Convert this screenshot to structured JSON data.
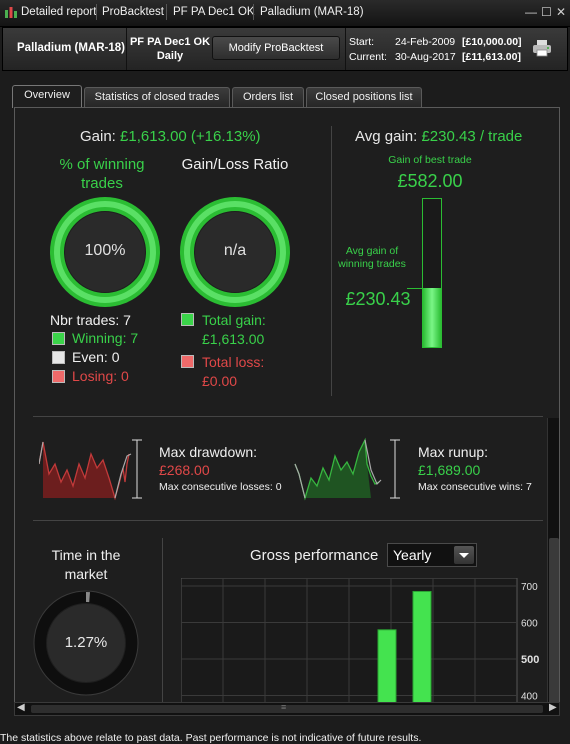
{
  "titlebar": {
    "crumbs": [
      "Detailed report",
      "ProBacktest",
      "PF PA Dec1 OK",
      "Palladium (MAR-18)"
    ],
    "buttons": [
      "—",
      "☐",
      "✕"
    ]
  },
  "header": {
    "instrument": "Palladium (MAR-18)",
    "strategy_line1": "PF PA Dec1 OK",
    "strategy_line2": "Daily",
    "modify_button": "Modify ProBacktest",
    "start_label": "Start:",
    "start_date": "24-Feb-2009",
    "start_value": "[£10,000.00]",
    "current_label": "Current:",
    "current_date": "30-Aug-2017",
    "current_value": "[£11,613.00]"
  },
  "tabs": [
    "Overview",
    "Statistics of closed trades",
    "Orders list",
    "Closed positions list"
  ],
  "overview": {
    "gain_label": "Gain:",
    "gain_value": "£1,613.00 (+16.13%)",
    "winning_title": "% of winning trades",
    "winning_value": "100%",
    "ratio_title": "Gain/Loss Ratio",
    "ratio_value": "n/a",
    "nbr_trades": "Nbr trades: 7",
    "winning": "Winning: 7",
    "even": "Even: 0",
    "losing": "Losing: 0",
    "total_gain_label": "Total gain:",
    "total_gain_value": "£1,613.00",
    "total_loss_label": "Total loss:",
    "total_loss_value": "£0.00",
    "avg_gain_label": "Avg gain:",
    "avg_gain_value": "£230.43 / trade",
    "best_trade_label": "Gain of best trade",
    "best_trade_value": "£582.00",
    "avg_winning_label": "Avg gain of winning trades",
    "avg_winning_value": "£230.43",
    "avg_fill_fraction": 0.396,
    "max_drawdown_label": "Max drawdown:",
    "max_drawdown_value": "£268.00",
    "max_consec_losses": "Max consecutive losses: 0",
    "max_runup_label": "Max runup:",
    "max_runup_value": "£1,689.00",
    "max_consec_wins": "Max consecutive wins: 7",
    "time_in_market_title": "Time in the market",
    "time_in_market_value": "1.27%",
    "time_in_market_fraction": 0.0127,
    "gross_perf_label": "Gross performance",
    "gross_perf_select": "Yearly"
  },
  "chart_data": {
    "type": "bar",
    "title": "Gross performance",
    "y_ticks": [
      "700",
      "600",
      "500",
      "400"
    ],
    "ylim": [
      400,
      700
    ],
    "values": [
      580,
      685
    ],
    "grid": true
  },
  "footer": "The statistics above relate to past data. Past performance is not indicative of future results.",
  "colors": {
    "accent_green": "#39d14a",
    "loss_red": "#e04848",
    "background": "#1e1e1e"
  }
}
